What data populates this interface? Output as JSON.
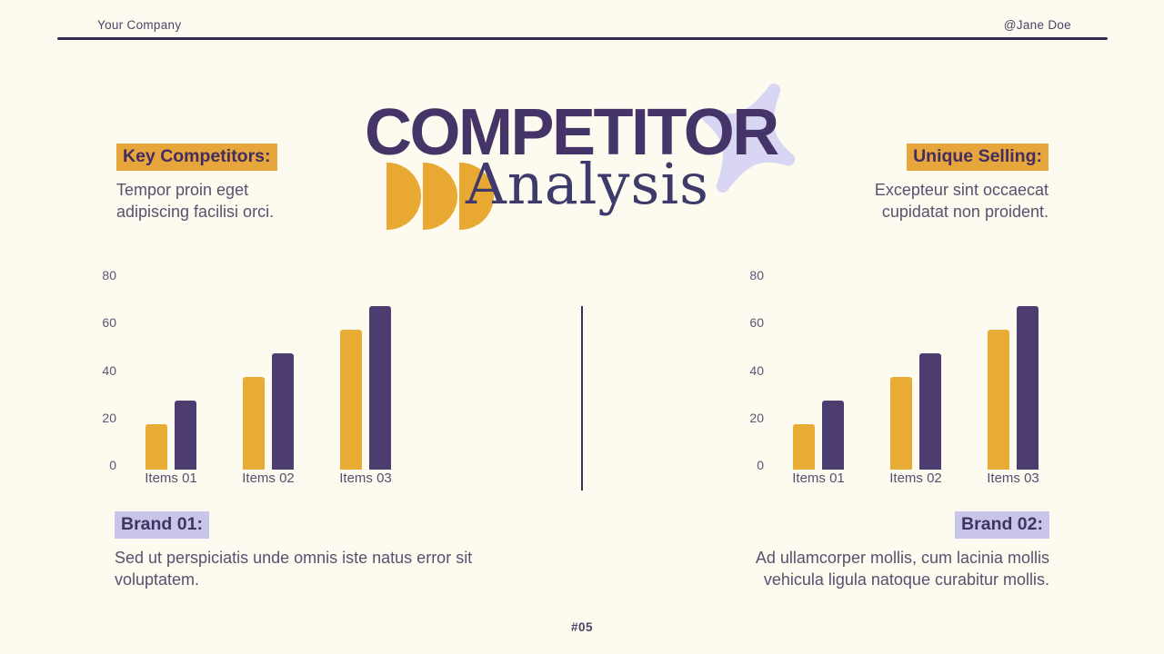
{
  "header": {
    "company": "Your Company",
    "handle": "@Jane Doe"
  },
  "title": {
    "line1": "COMPETITOR",
    "line2": "Analysis"
  },
  "decor": {
    "star_icon": "four-point-sparkle",
    "star_color": "#d8d6f2",
    "semicircle_color": "#e8a832",
    "semicircle_count": 3
  },
  "left_info": {
    "heading": "Key Competitors:",
    "body": "Tempor proin eget adipiscing facilisi orci."
  },
  "right_info": {
    "heading": "Unique Selling:",
    "body": "Excepteur sint occaecat cupidatat non proident."
  },
  "bottom_left": {
    "heading": "Brand 01:",
    "body": "Sed ut perspiciatis unde omnis iste natus error sit voluptatem."
  },
  "bottom_right": {
    "heading": "Brand 02:",
    "body": "Ad ullamcorper mollis, cum lacinia mollis vehicula ligula natoque curabitur mollis."
  },
  "page_number": "#05",
  "colors": {
    "background": "#fdfaef",
    "title_purple": "#443467",
    "bar_yellow": "#e8ab33",
    "bar_purple": "#4c3c70",
    "highlight_yellow": "#e7a63c",
    "highlight_lavender": "#c9c5e9",
    "header_rule": "#322b52",
    "body_text": "#575170"
  },
  "chart_data": [
    {
      "type": "bar",
      "title": "Brand 01",
      "categories": [
        "Items 01",
        "Items 02",
        "Items 03"
      ],
      "series": [
        {
          "name": "series-yellow",
          "color": "#e8ab33",
          "values": [
            19,
            39,
            59
          ]
        },
        {
          "name": "series-purple",
          "color": "#4c3c70",
          "values": [
            29,
            49,
            69
          ]
        }
      ],
      "ylim": [
        0,
        80
      ],
      "yticks": [
        0,
        20,
        40,
        60,
        80
      ],
      "grid": false,
      "legend": false
    },
    {
      "type": "bar",
      "title": "Brand 02",
      "categories": [
        "Items 01",
        "Items 02",
        "Items 03"
      ],
      "series": [
        {
          "name": "series-yellow",
          "color": "#e8ab33",
          "values": [
            19,
            39,
            59
          ]
        },
        {
          "name": "series-purple",
          "color": "#4c3c70",
          "values": [
            29,
            49,
            69
          ]
        }
      ],
      "ylim": [
        0,
        80
      ],
      "yticks": [
        0,
        20,
        40,
        60,
        80
      ],
      "grid": false,
      "legend": false
    }
  ]
}
